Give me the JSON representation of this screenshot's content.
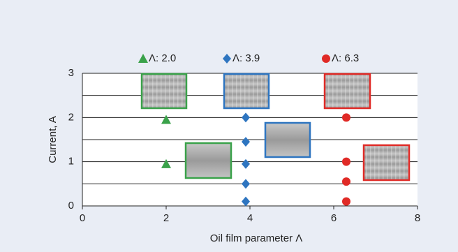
{
  "chart_data": {
    "type": "scatter",
    "xlabel": "Oil film parameter Λ",
    "ylabel": "Current, A",
    "xlim": [
      0,
      8
    ],
    "xticks": [
      0,
      2,
      4,
      6,
      8
    ],
    "ylim": [
      0,
      3
    ],
    "yticks": [
      0,
      1,
      2,
      3
    ],
    "grid": true,
    "yminor": [
      0.5,
      1.5,
      2.5
    ],
    "series": [
      {
        "name": "Λ: 2.0",
        "color": "#3aa24a",
        "marker": "triangle",
        "x": [
          2,
          2
        ],
        "values": [
          1.95,
          0.95
        ]
      },
      {
        "name": "Λ: 3.9",
        "color": "#2e75c0",
        "marker": "diamond",
        "x": [
          3.9,
          3.9,
          3.9,
          3.9,
          3.9
        ],
        "values": [
          2,
          1.45,
          0.95,
          0.5,
          0.1
        ]
      },
      {
        "name": "Λ: 6.3",
        "color": "#e02a26",
        "marker": "circle",
        "x": [
          6.3,
          6.3,
          6.3,
          6.3
        ],
        "values": [
          2,
          1,
          0.55,
          0.1
        ]
      }
    ]
  }
}
